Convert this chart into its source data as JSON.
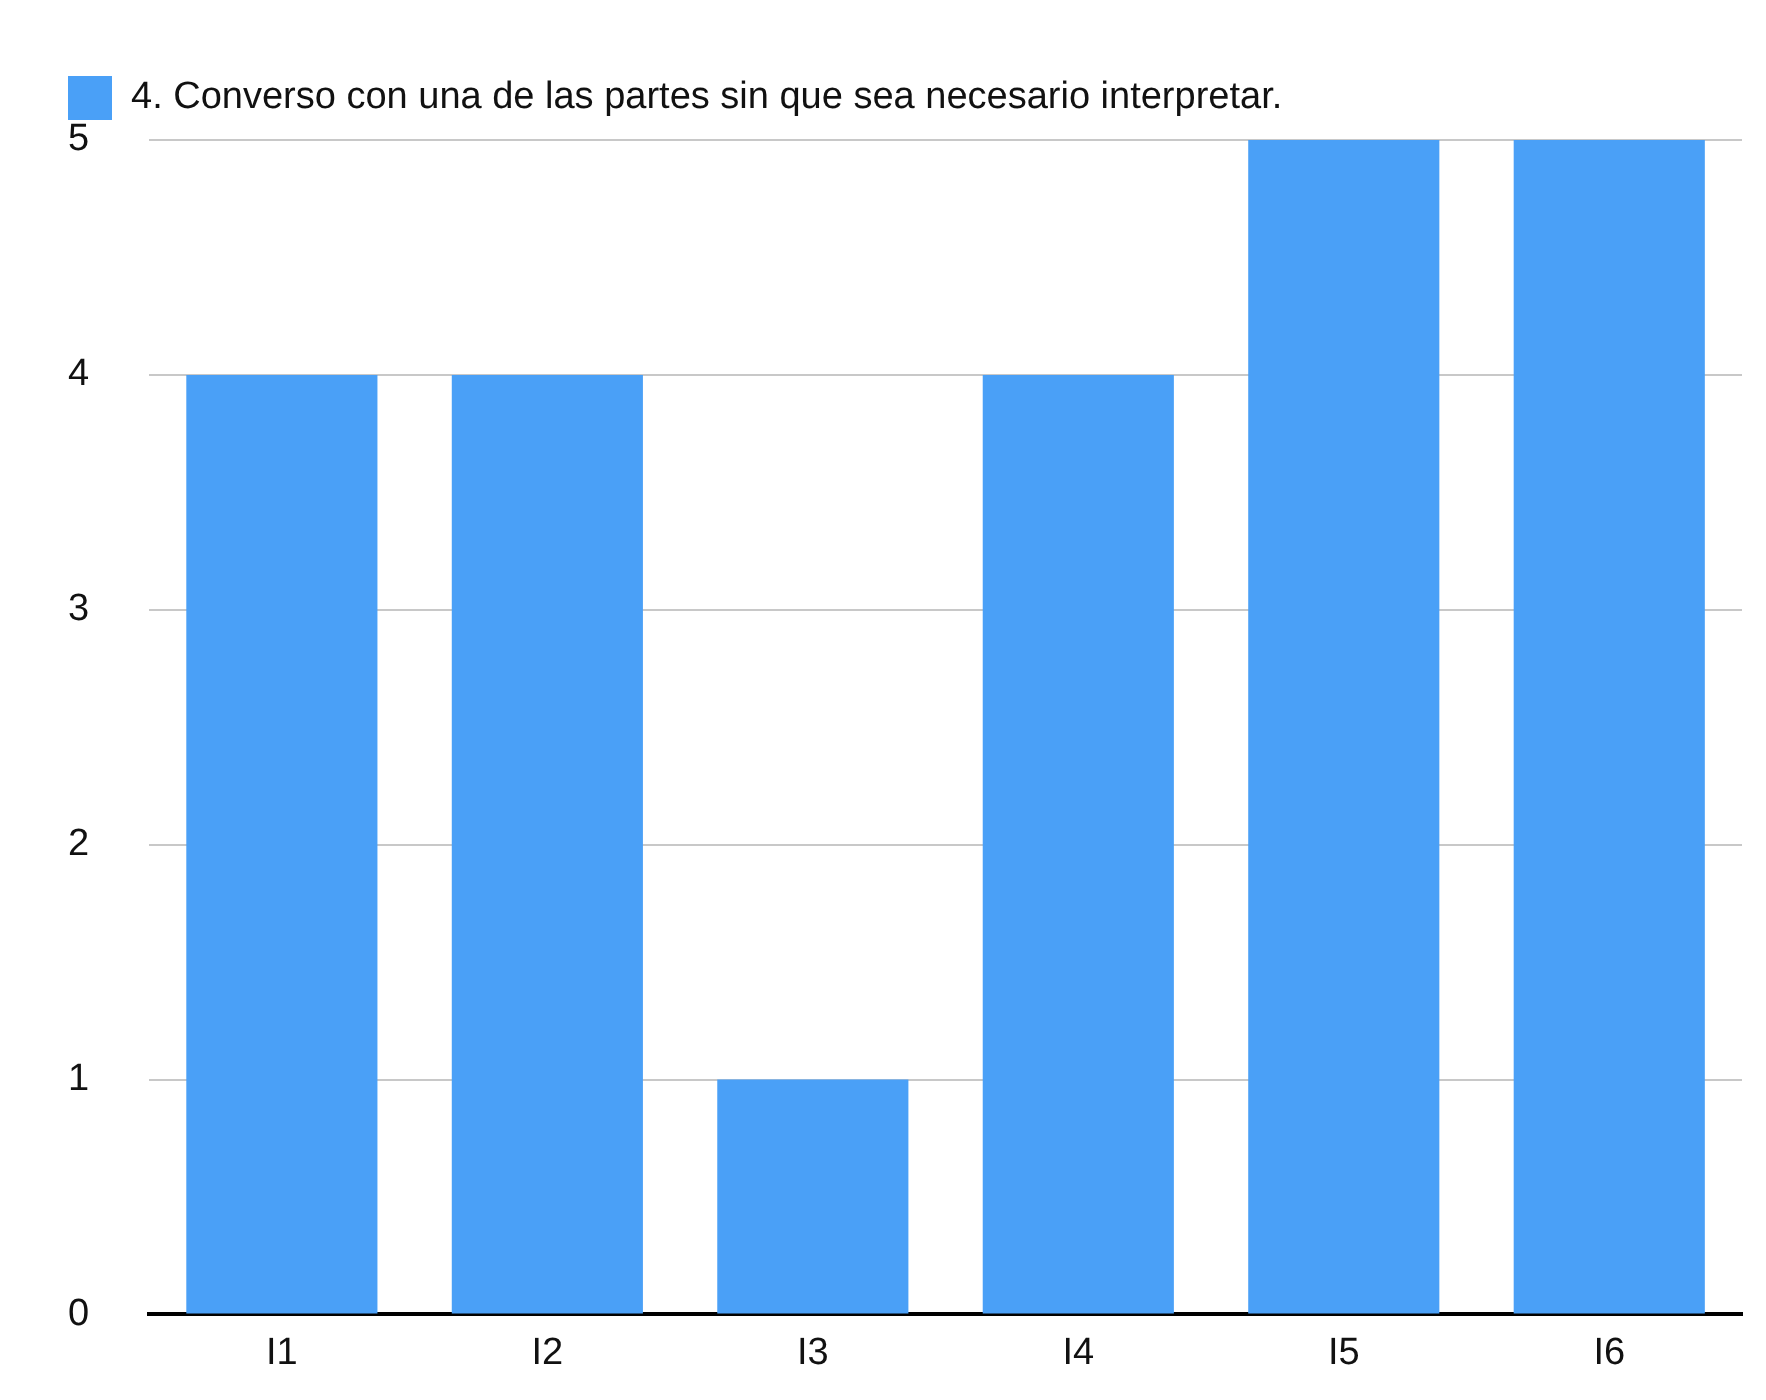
{
  "chart_data": {
    "type": "bar",
    "categories": [
      "I1",
      "I2",
      "I3",
      "I4",
      "I5",
      "I6"
    ],
    "series": [
      {
        "name": "4. Converso con una de las partes sin que sea necesario interpretar.",
        "color": "#4aa0f7",
        "values": [
          4,
          4,
          1,
          4,
          5,
          5
        ]
      }
    ],
    "ylim": [
      0,
      5
    ],
    "yticks": [
      0,
      1,
      2,
      3,
      4,
      5
    ],
    "grid": "y",
    "legend": "top"
  }
}
